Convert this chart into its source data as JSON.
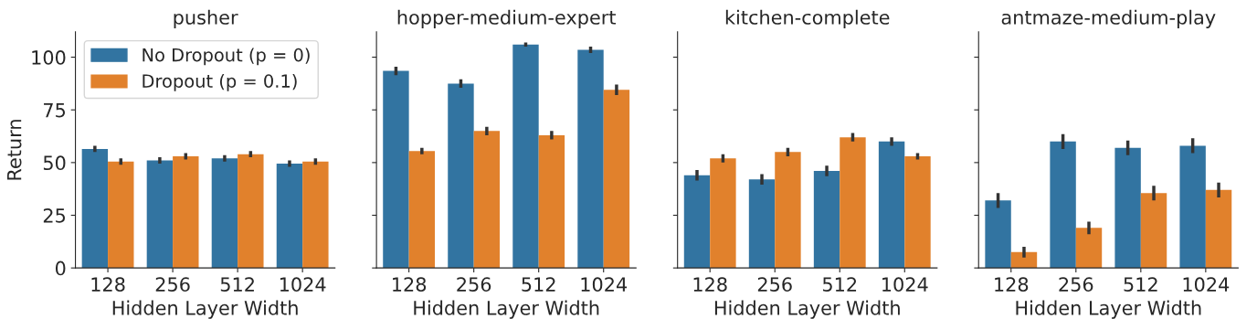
{
  "chart_data": [
    {
      "type": "bar",
      "title": "pusher",
      "xlabel": "Hidden Layer Width",
      "ylabel": "Return",
      "categories": [
        "128",
        "256",
        "512",
        "1024"
      ],
      "series": [
        {
          "name": "No Dropout (p = 0)",
          "color": "#3274a1",
          "values": [
            56.5,
            51,
            52,
            49.5
          ],
          "errors": [
            1.5,
            1.5,
            1.5,
            1.5
          ]
        },
        {
          "name": "Dropout (p = 0.1)",
          "color": "#e1812c",
          "values": [
            50.5,
            53,
            54,
            50.5
          ],
          "errors": [
            1.5,
            1.5,
            1.5,
            1.5
          ]
        }
      ],
      "ylim": [
        0,
        112
      ],
      "yticks": [
        0,
        25,
        50,
        75,
        100
      ],
      "legend": "top left"
    },
    {
      "type": "bar",
      "title": "hopper-medium-expert",
      "xlabel": "Hidden Layer Width",
      "categories": [
        "128",
        "256",
        "512",
        "1024"
      ],
      "series": [
        {
          "color": "#3274a1",
          "values": [
            93.5,
            87.5,
            106,
            103.5
          ],
          "errors": [
            2,
            2,
            1,
            1.5
          ]
        },
        {
          "color": "#e1812c",
          "values": [
            55.5,
            65,
            63,
            84.5
          ],
          "errors": [
            1.5,
            2,
            2,
            2.5
          ]
        }
      ],
      "ylim": [
        0,
        112
      ],
      "yticks": [
        0,
        25,
        50,
        75,
        100
      ],
      "tick_labels": "x"
    },
    {
      "type": "bar",
      "title": "kitchen-complete",
      "xlabel": "Hidden Layer Width",
      "categories": [
        "128",
        "256",
        "512",
        "1024"
      ],
      "series": [
        {
          "color": "#3274a1",
          "values": [
            44,
            42,
            46,
            60
          ],
          "errors": [
            2.5,
            2.5,
            2.5,
            2
          ]
        },
        {
          "color": "#e1812c",
          "values": [
            52,
            55,
            62,
            53
          ],
          "errors": [
            2,
            2,
            2,
            1.5
          ]
        }
      ],
      "ylim": [
        0,
        112
      ],
      "yticks": [
        0,
        25,
        50,
        75,
        100
      ],
      "tick_labels": "x"
    },
    {
      "type": "bar",
      "title": "antmaze-medium-play",
      "xlabel": "Hidden Layer Width",
      "categories": [
        "128",
        "256",
        "512",
        "1024"
      ],
      "series": [
        {
          "color": "#3274a1",
          "values": [
            32,
            60,
            57,
            58
          ],
          "errors": [
            3.5,
            3.5,
            3.5,
            3.5
          ]
        },
        {
          "color": "#e1812c",
          "values": [
            7.5,
            19,
            35.5,
            37
          ],
          "errors": [
            2.5,
            3,
            3.5,
            3.5
          ]
        }
      ],
      "ylim": [
        0,
        112
      ],
      "yticks": [
        0,
        25,
        50,
        75,
        100
      ],
      "tick_labels": "x"
    }
  ]
}
